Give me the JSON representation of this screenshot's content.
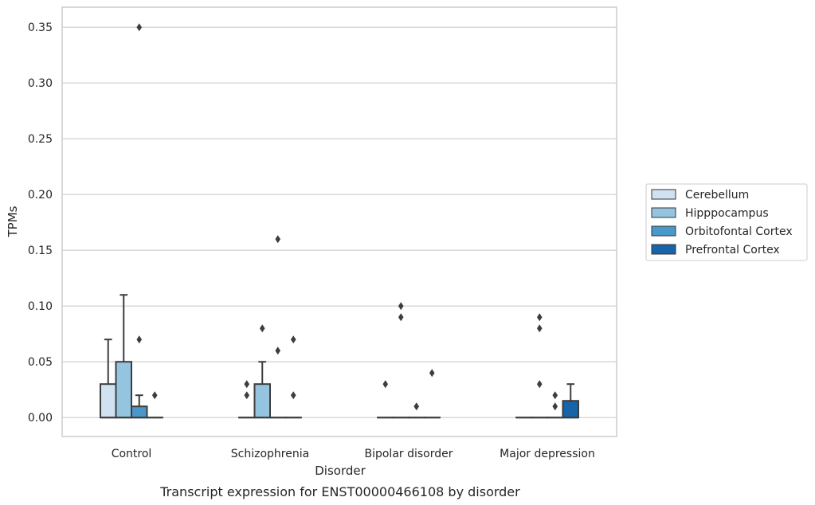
{
  "chart_data": {
    "type": "box",
    "title": "",
    "caption": "Transcript expression for ENST00000466108 by disorder",
    "xlabel": "Disorder",
    "ylabel": "TPMs",
    "ylim": [
      -0.017,
      0.368
    ],
    "yticks": [
      0.0,
      0.05,
      0.1,
      0.15,
      0.2,
      0.25,
      0.3,
      0.35
    ],
    "ytick_labels": [
      "0.00",
      "0.05",
      "0.10",
      "0.15",
      "0.20",
      "0.25",
      "0.30",
      "0.35"
    ],
    "grid": "horizontal",
    "legend_position": "right",
    "categories": [
      "Control",
      "Schizophrenia",
      "Bipolar disorder",
      "Major depression"
    ],
    "series": [
      {
        "name": "Cerebellum",
        "color": "#d0e1f2",
        "boxes": [
          {
            "q1": 0,
            "median": 0,
            "q3": 0.03,
            "whisker_low": 0,
            "whisker_high": 0.07,
            "outliers": []
          },
          {
            "q1": 0,
            "median": 0,
            "q3": 0,
            "whisker_low": 0,
            "whisker_high": 0,
            "outliers": [
              0.02,
              0.03
            ]
          },
          {
            "q1": 0,
            "median": 0,
            "q3": 0,
            "whisker_low": 0,
            "whisker_high": 0,
            "outliers": [
              0.03
            ]
          },
          {
            "q1": 0,
            "median": 0,
            "q3": 0,
            "whisker_low": 0,
            "whisker_high": 0,
            "outliers": []
          }
        ]
      },
      {
        "name": "Hipppocampus",
        "color": "#94c4df",
        "boxes": [
          {
            "q1": 0,
            "median": 0,
            "q3": 0.05,
            "whisker_low": 0,
            "whisker_high": 0.11,
            "outliers": []
          },
          {
            "q1": 0,
            "median": 0,
            "q3": 0.03,
            "whisker_low": 0,
            "whisker_high": 0.05,
            "outliers": [
              0.08
            ]
          },
          {
            "q1": 0,
            "median": 0,
            "q3": 0,
            "whisker_low": 0,
            "whisker_high": 0,
            "outliers": [
              0.09,
              0.1
            ]
          },
          {
            "q1": 0,
            "median": 0,
            "q3": 0,
            "whisker_low": 0,
            "whisker_high": 0,
            "outliers": [
              0.03,
              0.08,
              0.09
            ]
          }
        ]
      },
      {
        "name": "Orbitofontal Cortex",
        "color": "#4a98c9",
        "boxes": [
          {
            "q1": 0,
            "median": 0,
            "q3": 0.01,
            "whisker_low": 0,
            "whisker_high": 0.02,
            "outliers": [
              0.07,
              0.35
            ]
          },
          {
            "q1": 0,
            "median": 0,
            "q3": 0,
            "whisker_low": 0,
            "whisker_high": 0,
            "outliers": [
              0.06,
              0.16
            ]
          },
          {
            "q1": 0,
            "median": 0,
            "q3": 0,
            "whisker_low": 0,
            "whisker_high": 0,
            "outliers": [
              0.01
            ]
          },
          {
            "q1": 0,
            "median": 0,
            "q3": 0,
            "whisker_low": 0,
            "whisker_high": 0,
            "outliers": [
              0.01,
              0.02
            ]
          }
        ]
      },
      {
        "name": "Prefrontal Cortex",
        "color": "#1764ab",
        "boxes": [
          {
            "q1": 0,
            "median": 0,
            "q3": 0,
            "whisker_low": 0,
            "whisker_high": 0,
            "outliers": [
              0.02
            ]
          },
          {
            "q1": 0,
            "median": 0,
            "q3": 0,
            "whisker_low": 0,
            "whisker_high": 0,
            "outliers": [
              0.02,
              0.07
            ]
          },
          {
            "q1": 0,
            "median": 0,
            "q3": 0,
            "whisker_low": 0,
            "whisker_high": 0,
            "outliers": [
              0.04
            ]
          },
          {
            "q1": 0,
            "median": 0,
            "q3": 0.015,
            "whisker_low": 0,
            "whisker_high": 0.03,
            "outliers": []
          }
        ]
      }
    ]
  }
}
